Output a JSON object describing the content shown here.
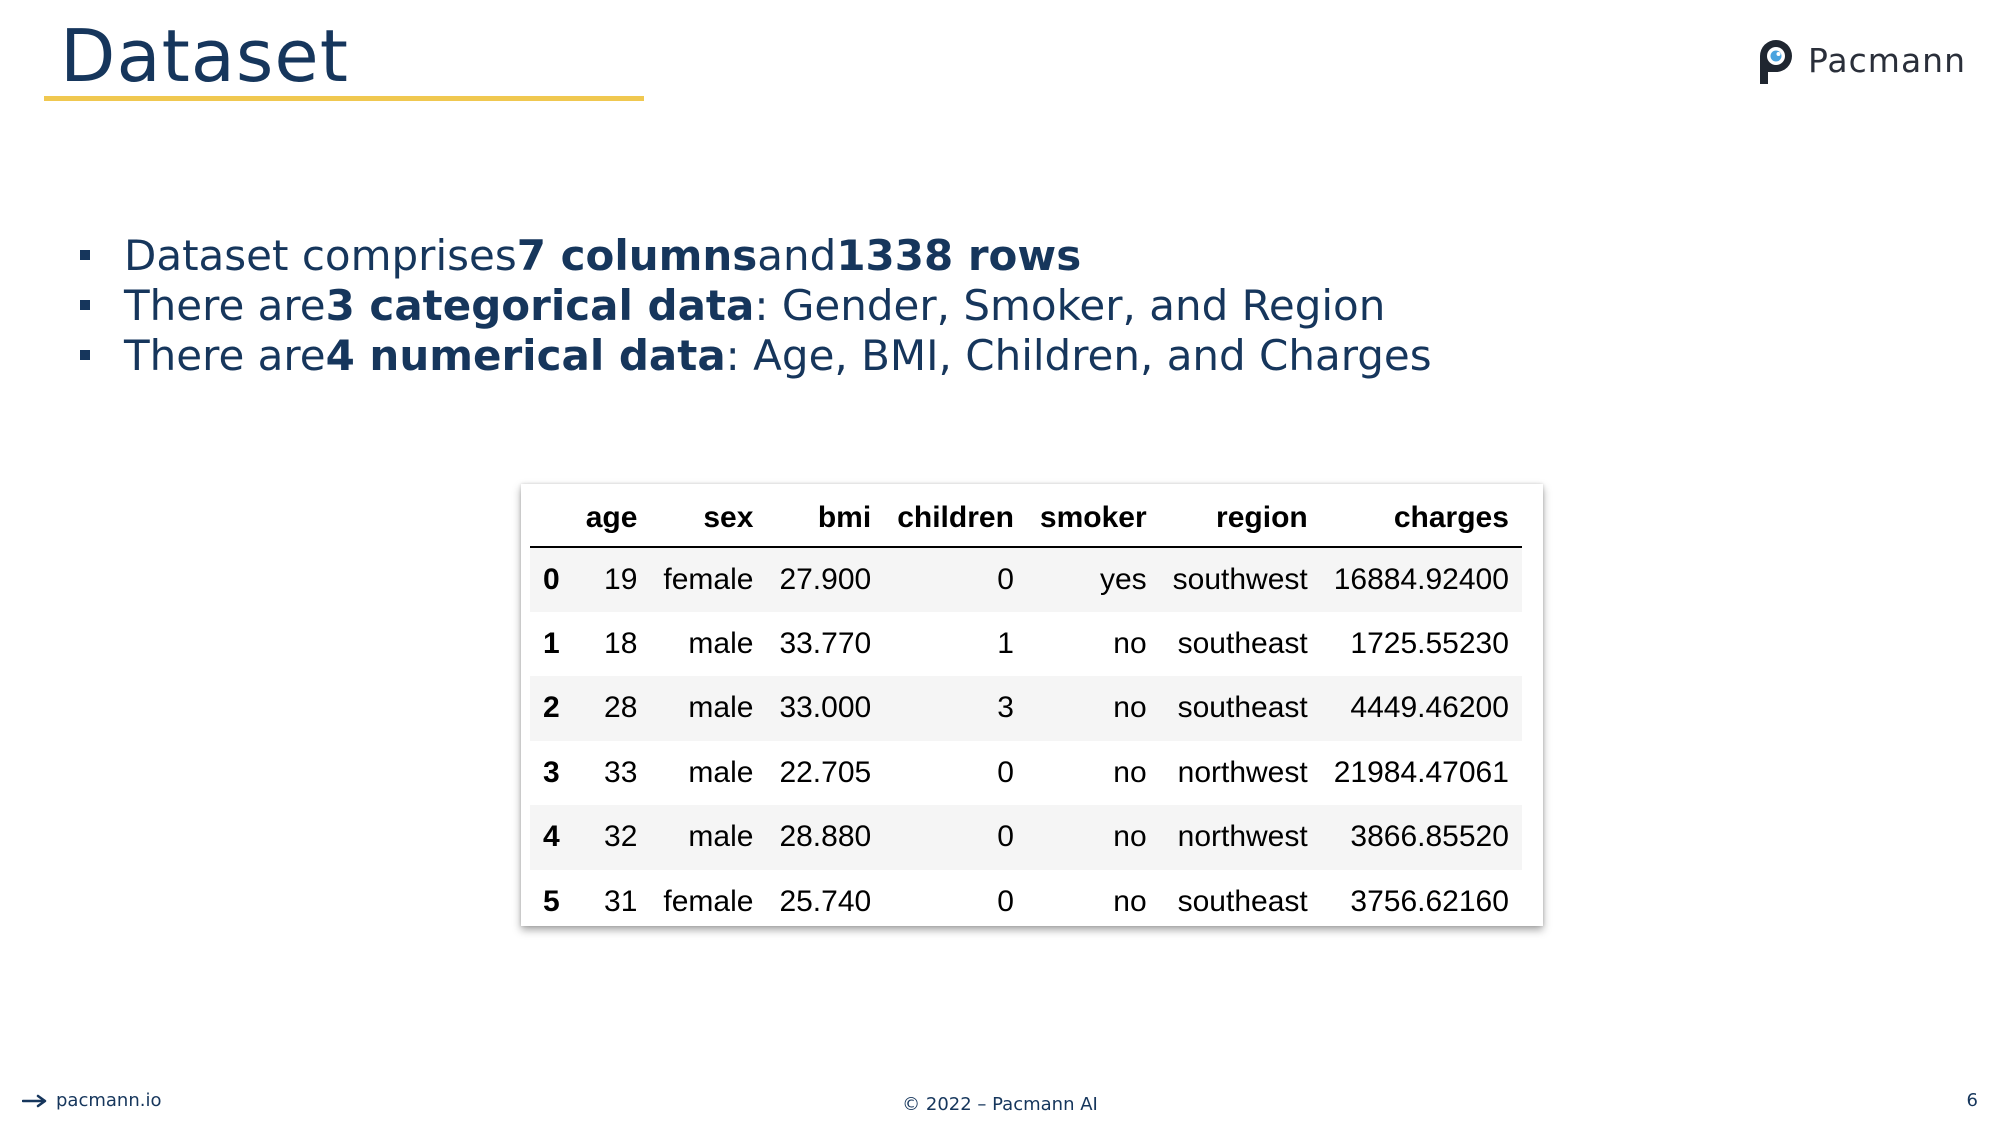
{
  "slide": {
    "title": "Dataset",
    "logo_text": "Pacmann",
    "bullets": [
      {
        "pre": "Dataset comprises ",
        "bold1": "7 columns",
        "mid": " and ",
        "bold2": "1338 rows"
      },
      {
        "pre": "There are ",
        "bold": "3 categorical data",
        "post": ": Gender, Smoker, and Region"
      },
      {
        "pre": "There are ",
        "bold": "4 numerical data",
        "post": ": Age, BMI, Children, and Charges"
      }
    ]
  },
  "table": {
    "columns": [
      "age",
      "sex",
      "bmi",
      "children",
      "smoker",
      "region",
      "charges"
    ],
    "rows": [
      {
        "index": "0",
        "cells": [
          "19",
          "female",
          "27.900",
          "0",
          "yes",
          "southwest",
          "16884.92400"
        ]
      },
      {
        "index": "1",
        "cells": [
          "18",
          "male",
          "33.770",
          "1",
          "no",
          "southeast",
          "1725.55230"
        ]
      },
      {
        "index": "2",
        "cells": [
          "28",
          "male",
          "33.000",
          "3",
          "no",
          "southeast",
          "4449.46200"
        ]
      },
      {
        "index": "3",
        "cells": [
          "33",
          "male",
          "22.705",
          "0",
          "no",
          "northwest",
          "21984.47061"
        ]
      },
      {
        "index": "4",
        "cells": [
          "32",
          "male",
          "28.880",
          "0",
          "no",
          "northwest",
          "3866.85520"
        ]
      },
      {
        "index": "5",
        "cells": [
          "31",
          "female",
          "25.740",
          "0",
          "no",
          "southeast",
          "3756.62160"
        ]
      }
    ]
  },
  "footer": {
    "link": "pacmann.io",
    "copyright": "© 2022 – Pacmann AI",
    "page_number": "6"
  },
  "colors": {
    "primary": "#16365c",
    "accent": "#f0c850",
    "row_stripe": "#f5f5f5"
  },
  "icons": {
    "logo": "pacmann-logo-icon",
    "footer_arrow": "arrow-right-icon"
  }
}
